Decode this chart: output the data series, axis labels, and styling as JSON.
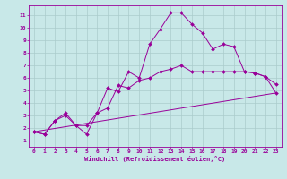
{
  "xlabel": "Windchill (Refroidissement éolien,°C)",
  "line_color": "#990099",
  "bg_color": "#c8e8e8",
  "grid_color": "#aacccc",
  "xlim": [
    -0.5,
    23.5
  ],
  "ylim": [
    0.5,
    11.8
  ],
  "xticks": [
    0,
    1,
    2,
    3,
    4,
    5,
    6,
    7,
    8,
    9,
    10,
    11,
    12,
    13,
    14,
    15,
    16,
    17,
    18,
    19,
    20,
    21,
    22,
    23
  ],
  "yticks": [
    1,
    2,
    3,
    4,
    5,
    6,
    7,
    8,
    9,
    10,
    11
  ],
  "line1_x": [
    0,
    1,
    2,
    3,
    4,
    5,
    6,
    7,
    8,
    9,
    10,
    11,
    12,
    13,
    14,
    15,
    16,
    17,
    18,
    19,
    20,
    21,
    22,
    23
  ],
  "line1_y": [
    1.7,
    1.5,
    2.6,
    3.2,
    2.2,
    1.5,
    3.2,
    5.2,
    4.9,
    6.5,
    6.0,
    8.7,
    9.9,
    11.2,
    11.2,
    10.3,
    9.6,
    8.3,
    8.7,
    8.5,
    6.5,
    6.4,
    6.1,
    5.5
  ],
  "line2_x": [
    0,
    1,
    2,
    3,
    4,
    5,
    6,
    7,
    8,
    9,
    10,
    11,
    12,
    13,
    14,
    15,
    16,
    17,
    18,
    19,
    20,
    21,
    22,
    23
  ],
  "line2_y": [
    1.7,
    1.5,
    2.6,
    3.0,
    2.2,
    2.2,
    3.2,
    3.6,
    5.4,
    5.2,
    5.8,
    6.0,
    6.5,
    6.7,
    7.0,
    6.5,
    6.5,
    6.5,
    6.5,
    6.5,
    6.5,
    6.4,
    6.1,
    4.8
  ],
  "line3_x": [
    0,
    23
  ],
  "line3_y": [
    1.7,
    4.8
  ],
  "marker_size": 2.0,
  "line_width": 0.7,
  "tick_fontsize": 4.5,
  "xlabel_fontsize": 5.0
}
